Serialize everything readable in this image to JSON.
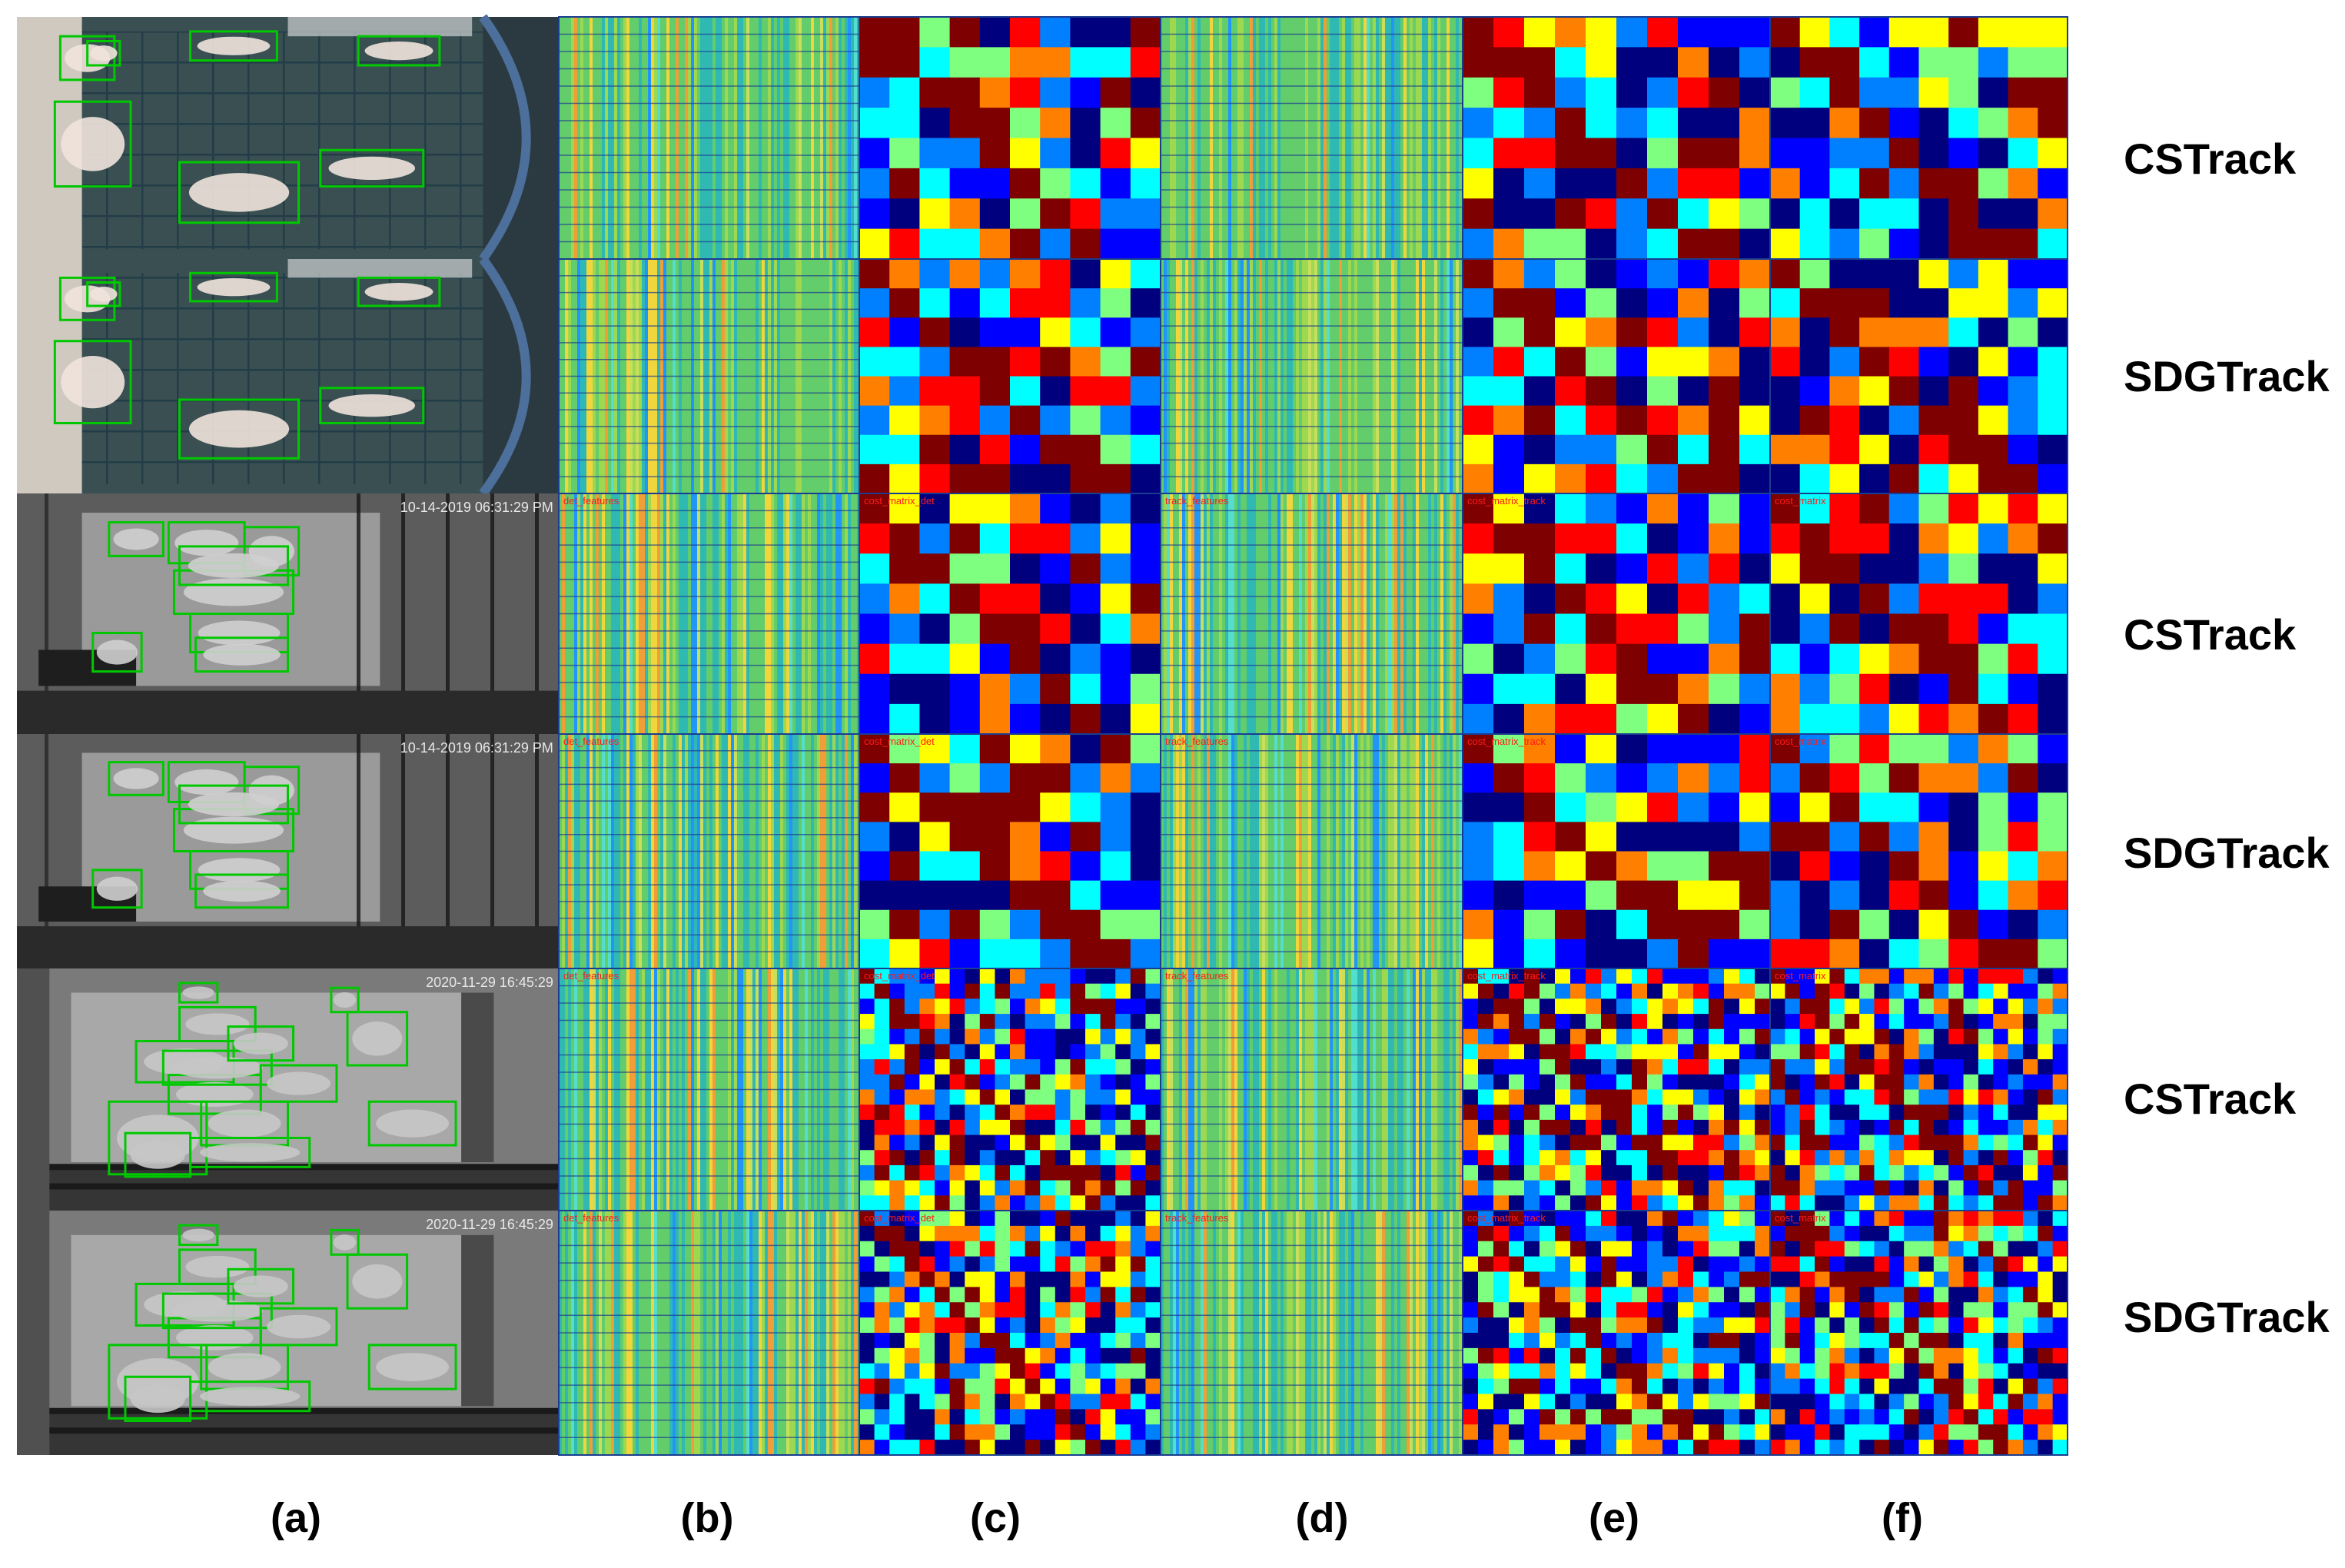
{
  "column_labels": [
    "(a)",
    "(b)",
    "(c)",
    "(d)",
    "(e)",
    "(f)"
  ],
  "row_labels": [
    "CSTrack",
    "SDGTrack",
    "CSTrack",
    "SDGTrack",
    "CSTrack",
    "SDGTrack"
  ],
  "panel_captions": {
    "b": "det_features",
    "c": "cost_matrix_det",
    "d": "track_features",
    "e": "cost_matrix_track",
    "f": "cost_matrix"
  },
  "timestamps": {
    "scene2": "10-14-2019 06:31:29 PM",
    "scene3": "2020-11-29 16:45:29"
  },
  "colormap": [
    "#00007f",
    "#0000ff",
    "#007fff",
    "#00ffff",
    "#7fff7f",
    "#ffff00",
    "#ff7f00",
    "#ff0000",
    "#7f0000"
  ],
  "box_color": "#00c800",
  "scenes": [
    {
      "name": "scene1",
      "style": "color-overhead",
      "matrix_size": 10,
      "detections": 7
    },
    {
      "name": "scene2",
      "style": "night-grayscale",
      "matrix_size": 10,
      "detections": 8
    },
    {
      "name": "scene3",
      "style": "day-grayscale",
      "matrix_size": 20,
      "detections": 14
    }
  ]
}
